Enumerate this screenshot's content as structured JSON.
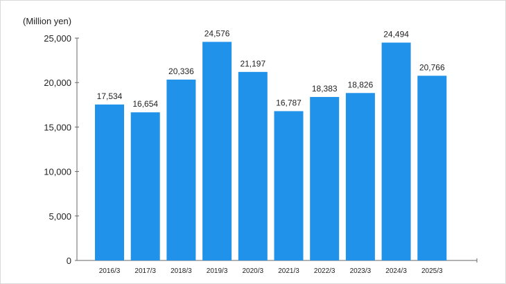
{
  "chart_data": {
    "type": "bar",
    "title": "",
    "unit_label": "(Million yen)",
    "xlabel": "",
    "ylabel": "",
    "ylim": [
      0,
      25000
    ],
    "y_ticks": [
      0,
      5000,
      10000,
      15000,
      20000,
      25000
    ],
    "y_tick_labels": [
      "0",
      "5,000",
      "10,000",
      "15,000",
      "20,000",
      "25,000"
    ],
    "categories": [
      "2016/3",
      "2017/3",
      "2018/3",
      "2019/3",
      "2020/3",
      "2021/3",
      "2022/3",
      "2023/3",
      "2024/3",
      "2025/3"
    ],
    "values": [
      17534,
      16654,
      20336,
      24576,
      21197,
      16787,
      18383,
      18826,
      24494,
      20766
    ],
    "value_labels": [
      "17,534",
      "16,654",
      "20,336",
      "24,576",
      "21,197",
      "16,787",
      "18,383",
      "18,826",
      "24,494",
      "20,766"
    ],
    "bar_color": "#2192ea",
    "axis_color": "#666666",
    "grid": false,
    "legend": "none"
  }
}
